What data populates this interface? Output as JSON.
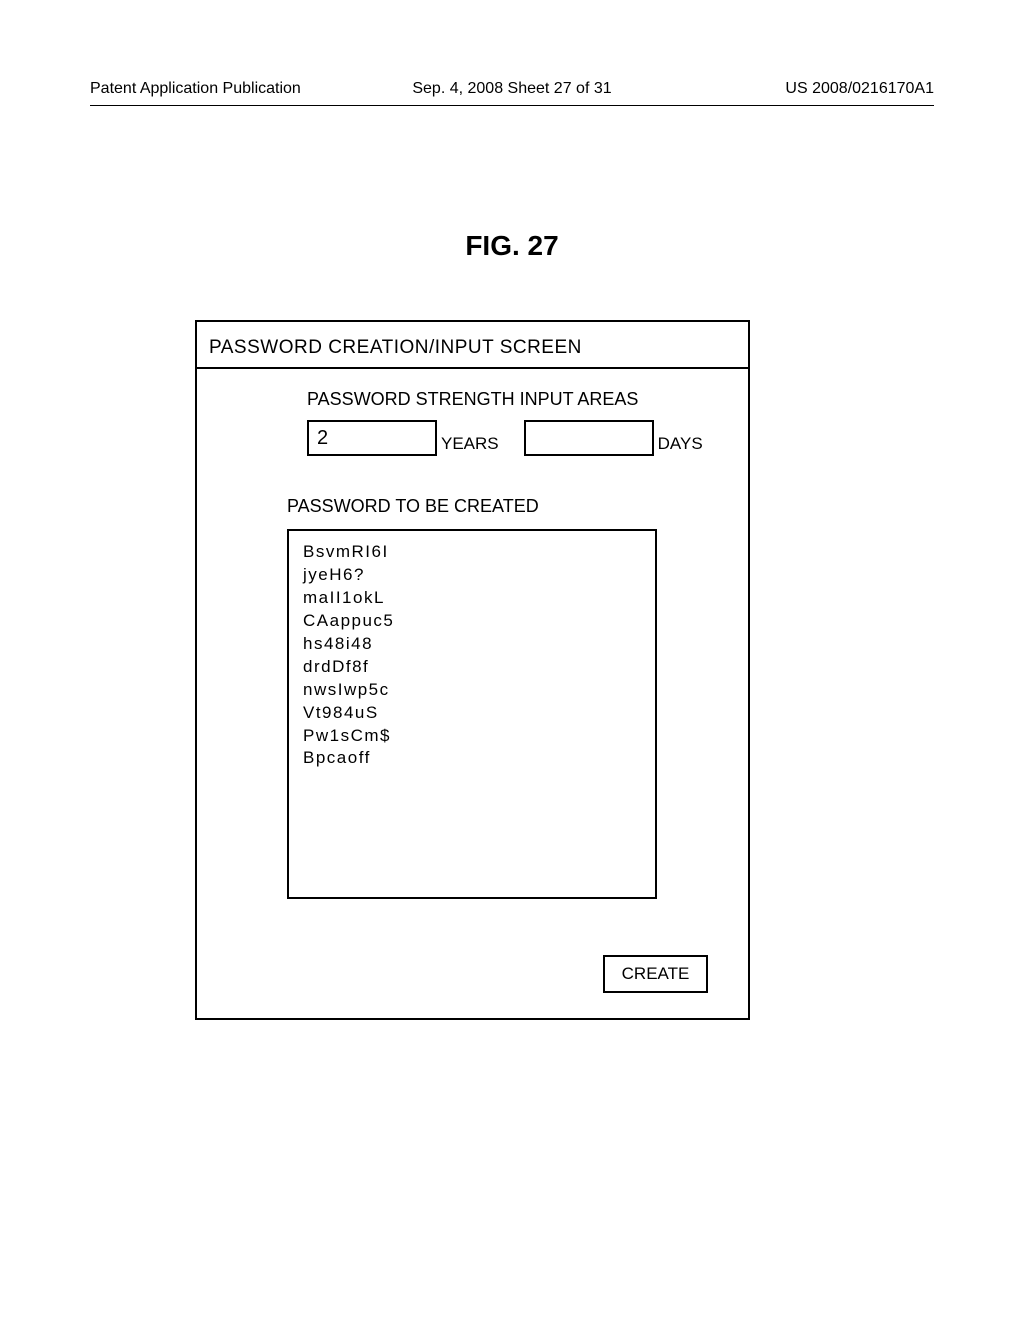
{
  "header": {
    "left": "Patent Application Publication",
    "center": "Sep. 4, 2008  Sheet 27 of 31",
    "right": "US 2008/0216170A1"
  },
  "figure_title": "FIG. 27",
  "screen": {
    "title": "PASSWORD CREATION/INPUT SCREEN",
    "strength_label": "PASSWORD STRENGTH INPUT AREAS",
    "years_value": "2",
    "years_label": "YEARS",
    "days_value": "",
    "days_label": "DAYS",
    "passwords_label": "PASSWORD TO BE CREATED",
    "passwords": [
      "BsvmRI6I",
      "jyeH6?",
      "maII1okL",
      "CAappuc5",
      "hs48i48",
      "drdDf8f",
      "nwsIwp5c",
      "Vt984uS",
      "Pw1sCm$",
      "Bpcaoff"
    ],
    "create_button": "CREATE"
  }
}
